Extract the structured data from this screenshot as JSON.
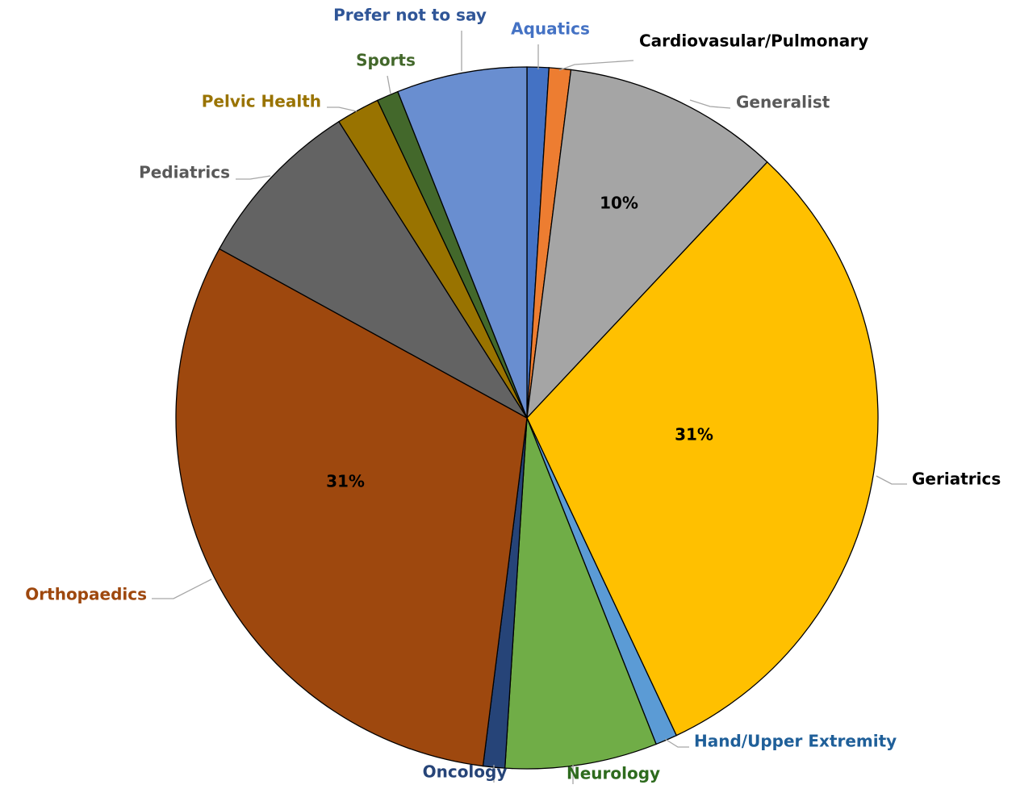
{
  "chart_data": {
    "type": "pie",
    "categories": [
      "Aquatics",
      "Cardiovasular/Pulmonary",
      "Generalist",
      "Geriatrics",
      "Hand/Upper Extremity",
      "Neurology",
      "Oncology",
      "Orthopaedics",
      "Pediatrics",
      "Pelvic Health",
      "Sports",
      "Prefer not to say"
    ],
    "values": [
      1,
      1,
      10,
      31,
      1,
      7,
      1,
      31,
      8,
      2,
      1,
      6
    ],
    "value_labels": [
      null,
      null,
      "10%",
      "31%",
      null,
      null,
      null,
      "31%",
      null,
      null,
      null,
      null
    ],
    "colors": [
      "#4472c4",
      "#ed7d31",
      "#a5a5a5",
      "#ffc000",
      "#5b9bd5",
      "#70ad47",
      "#264478",
      "#9e480e",
      "#636363",
      "#997300",
      "#43682b",
      "#698ed0"
    ],
    "label_colors": [
      "#4472c4",
      "#000000",
      "#595959",
      "#000000",
      "#1f5f99",
      "#2e6b1e",
      "#264478",
      "#9e480e",
      "#595959",
      "#997300",
      "#43682b",
      "#2f5597"
    ]
  }
}
